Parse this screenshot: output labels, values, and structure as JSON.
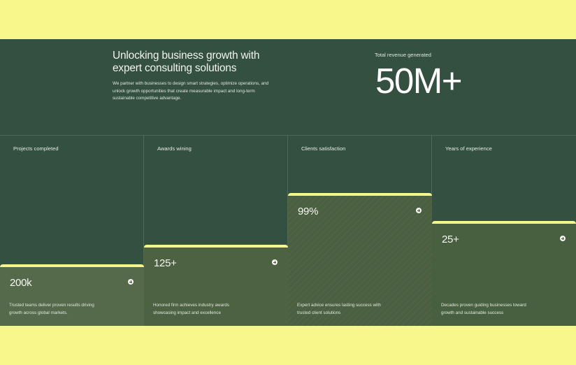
{
  "hero": {
    "title": "Unlocking business growth with expert consulting solutions",
    "description": "We partner with businesses to design smart strategies, optimize operations, and unlock growth opportunities that create measurable impact and long-term sustainable competitive advantage."
  },
  "revenue": {
    "label": "Total revenue generated",
    "value": "50M+"
  },
  "stats": [
    {
      "title": "Projects completed",
      "value": "200k",
      "description": "Trusted teams deliver proven results driving growth across global markets.",
      "icon": "plus-circle-icon"
    },
    {
      "title": "Awards wining",
      "value": "125+",
      "description": "Honored firm achieves industry awards showcasing impact and excellence",
      "icon": "plus-circle-icon"
    },
    {
      "title": "Clients satisfaction",
      "value": "99%",
      "description": "Expert advice ensures lasting success with trusted client solutions",
      "icon": "plus-circle-icon"
    },
    {
      "title": "Years of experience",
      "value": "25+",
      "description": "Decades proven guiding businesses toward growth and sustainable success",
      "icon": "plus-circle-icon"
    }
  ],
  "colors": {
    "page_background": "#f7f78c",
    "panel_background": "#345040",
    "accent": "#f4f58a"
  }
}
